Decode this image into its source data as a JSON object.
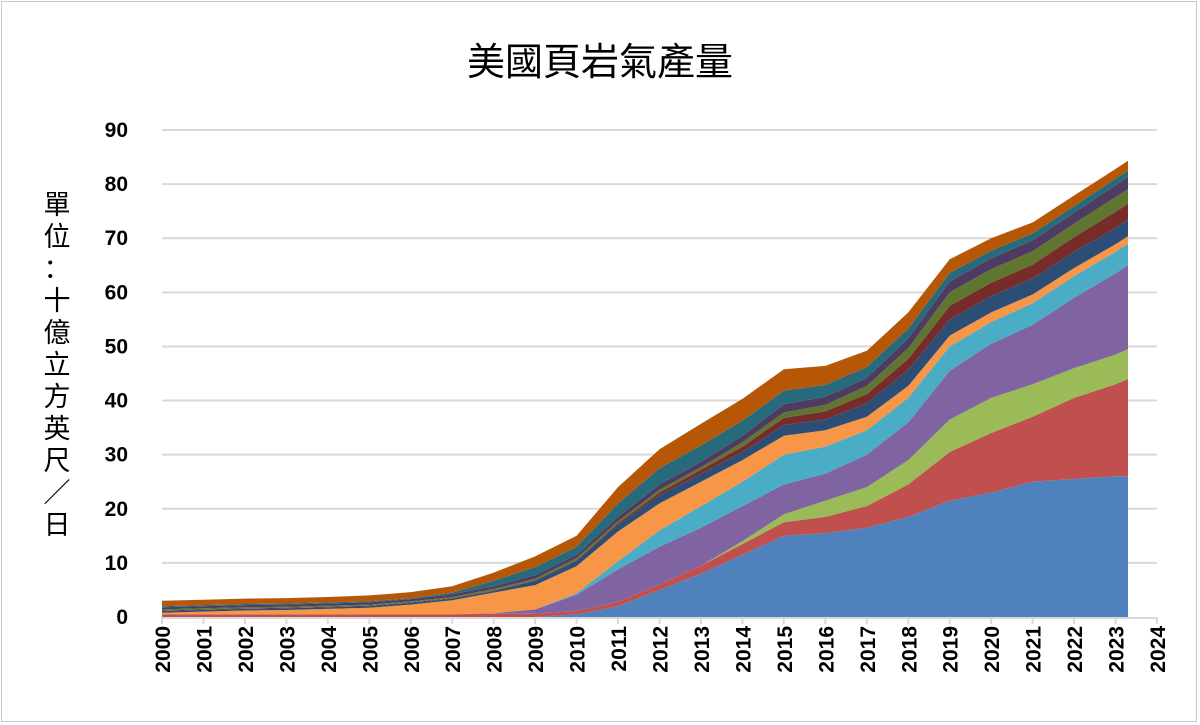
{
  "chart_data": {
    "type": "area",
    "stacked": true,
    "title": "美國頁岩氣產量",
    "ylabel": "單位：十億立方英尺／日",
    "xlabel": "",
    "xlim": [
      2000,
      2024
    ],
    "ylim": [
      0,
      90
    ],
    "xticks": [
      "2000",
      "2001",
      "2002",
      "2003",
      "2004",
      "2005",
      "2006",
      "2007",
      "2008",
      "2009",
      "2010",
      "2011",
      "2012",
      "2013",
      "2014",
      "2015",
      "2016",
      "2017",
      "2018",
      "2019",
      "2020",
      "2021",
      "2022",
      "2023",
      "2024"
    ],
    "yticks": [
      "0",
      "10",
      "20",
      "30",
      "40",
      "50",
      "60",
      "70",
      "80",
      "90"
    ],
    "grid": "horizontal",
    "legend": "none",
    "x": [
      2000,
      2001,
      2002,
      2003,
      2004,
      2005,
      2006,
      2007,
      2008,
      2009,
      2010,
      2011,
      2012,
      2013,
      2014,
      2015,
      2016,
      2017,
      2018,
      2019,
      2020,
      2021,
      2022,
      2023,
      2023.3
    ],
    "series": [
      {
        "color": "#4F81BD",
        "values": [
          0,
          0,
          0,
          0,
          0,
          0,
          0,
          0,
          0,
          0,
          0.5,
          2,
          5,
          8,
          11.5,
          15,
          15.5,
          16.5,
          18.5,
          21.5,
          23,
          25,
          25.5,
          26,
          26
        ]
      },
      {
        "color": "#C0504D",
        "values": [
          0.5,
          0.5,
          0.5,
          0.5,
          0.5,
          0.5,
          0.5,
          0.5,
          0.6,
          0.6,
          0.6,
          0.8,
          1,
          1.5,
          2,
          2.5,
          3,
          4,
          6,
          9,
          11,
          12,
          15,
          17,
          18
        ]
      },
      {
        "color": "#9BBB59",
        "values": [
          0,
          0,
          0,
          0,
          0,
          0,
          0,
          0,
          0,
          0,
          0,
          0,
          0,
          0,
          0.5,
          1.5,
          3,
          3.5,
          4.5,
          6,
          6.5,
          6,
          5.5,
          5.5,
          5.5
        ]
      },
      {
        "color": "#8064A2",
        "values": [
          0,
          0,
          0,
          0,
          0,
          0,
          0,
          0,
          0.1,
          0.8,
          3,
          6,
          7,
          7,
          6.5,
          5.5,
          5,
          6,
          7,
          9,
          10,
          11,
          13,
          15,
          15.5
        ]
      },
      {
        "color": "#4BACC6",
        "values": [
          0,
          0,
          0,
          0,
          0,
          0,
          0,
          0,
          0,
          0,
          0.3,
          1.5,
          3,
          4,
          4.5,
          5.5,
          5,
          4.5,
          4.5,
          4.5,
          4,
          4,
          4,
          4,
          4
        ]
      },
      {
        "color": "#F79646",
        "values": [
          0.3,
          0.5,
          0.7,
          0.8,
          1,
          1.2,
          1.8,
          2.6,
          3.8,
          4.5,
          5,
          5.5,
          5,
          4.5,
          4,
          3.5,
          3,
          2.5,
          2.2,
          2,
          1.8,
          1.6,
          1.5,
          1.4,
          1.4
        ]
      },
      {
        "color": "#2C4D75",
        "values": [
          0.3,
          0.3,
          0.3,
          0.3,
          0.3,
          0.3,
          0.3,
          0.3,
          0.3,
          0.8,
          1,
          1.2,
          1.5,
          1.5,
          1.5,
          2,
          2,
          2.5,
          3,
          3,
          3,
          3,
          3,
          3,
          3
        ]
      },
      {
        "color": "#772C2A",
        "values": [
          0.1,
          0.1,
          0.1,
          0.1,
          0.1,
          0.1,
          0.1,
          0.1,
          0.1,
          0.1,
          0.1,
          0.3,
          0.5,
          0.7,
          1,
          1.3,
          1.5,
          1.7,
          2,
          2.5,
          2.5,
          2.5,
          2.7,
          3,
          3
        ]
      },
      {
        "color": "#5F7530",
        "values": [
          0.2,
          0.2,
          0.2,
          0.2,
          0.2,
          0.2,
          0.2,
          0.2,
          0.3,
          0.3,
          0.4,
          0.4,
          0.5,
          0.5,
          0.8,
          1,
          1.2,
          1.5,
          2,
          2.5,
          2.5,
          2.5,
          2.5,
          2.7,
          2.7
        ]
      },
      {
        "color": "#4D3B62",
        "values": [
          0.4,
          0.4,
          0.4,
          0.4,
          0.4,
          0.4,
          0.4,
          0.5,
          0.5,
          0.6,
          0.6,
          0.8,
          1,
          1,
          1.2,
          1.5,
          1.5,
          1.5,
          1.8,
          2,
          2,
          2,
          2,
          2.2,
          2.2
        ]
      },
      {
        "color": "#276A7C",
        "values": [
          0.2,
          0.2,
          0.2,
          0.2,
          0.2,
          0.2,
          0.2,
          0.3,
          1,
          1.5,
          1.5,
          2.5,
          3,
          3,
          2.8,
          2.5,
          2.2,
          2,
          1.8,
          1.6,
          1.4,
          1.3,
          1.2,
          1.2,
          1.2
        ]
      },
      {
        "color": "#B65708",
        "values": [
          1,
          1,
          1,
          1,
          1,
          1.1,
          1.1,
          1.2,
          1.5,
          2,
          2,
          3,
          3.5,
          4,
          4,
          4,
          3.5,
          3,
          3,
          2.5,
          2.3,
          2,
          2,
          1.8,
          1.8
        ]
      }
    ]
  }
}
